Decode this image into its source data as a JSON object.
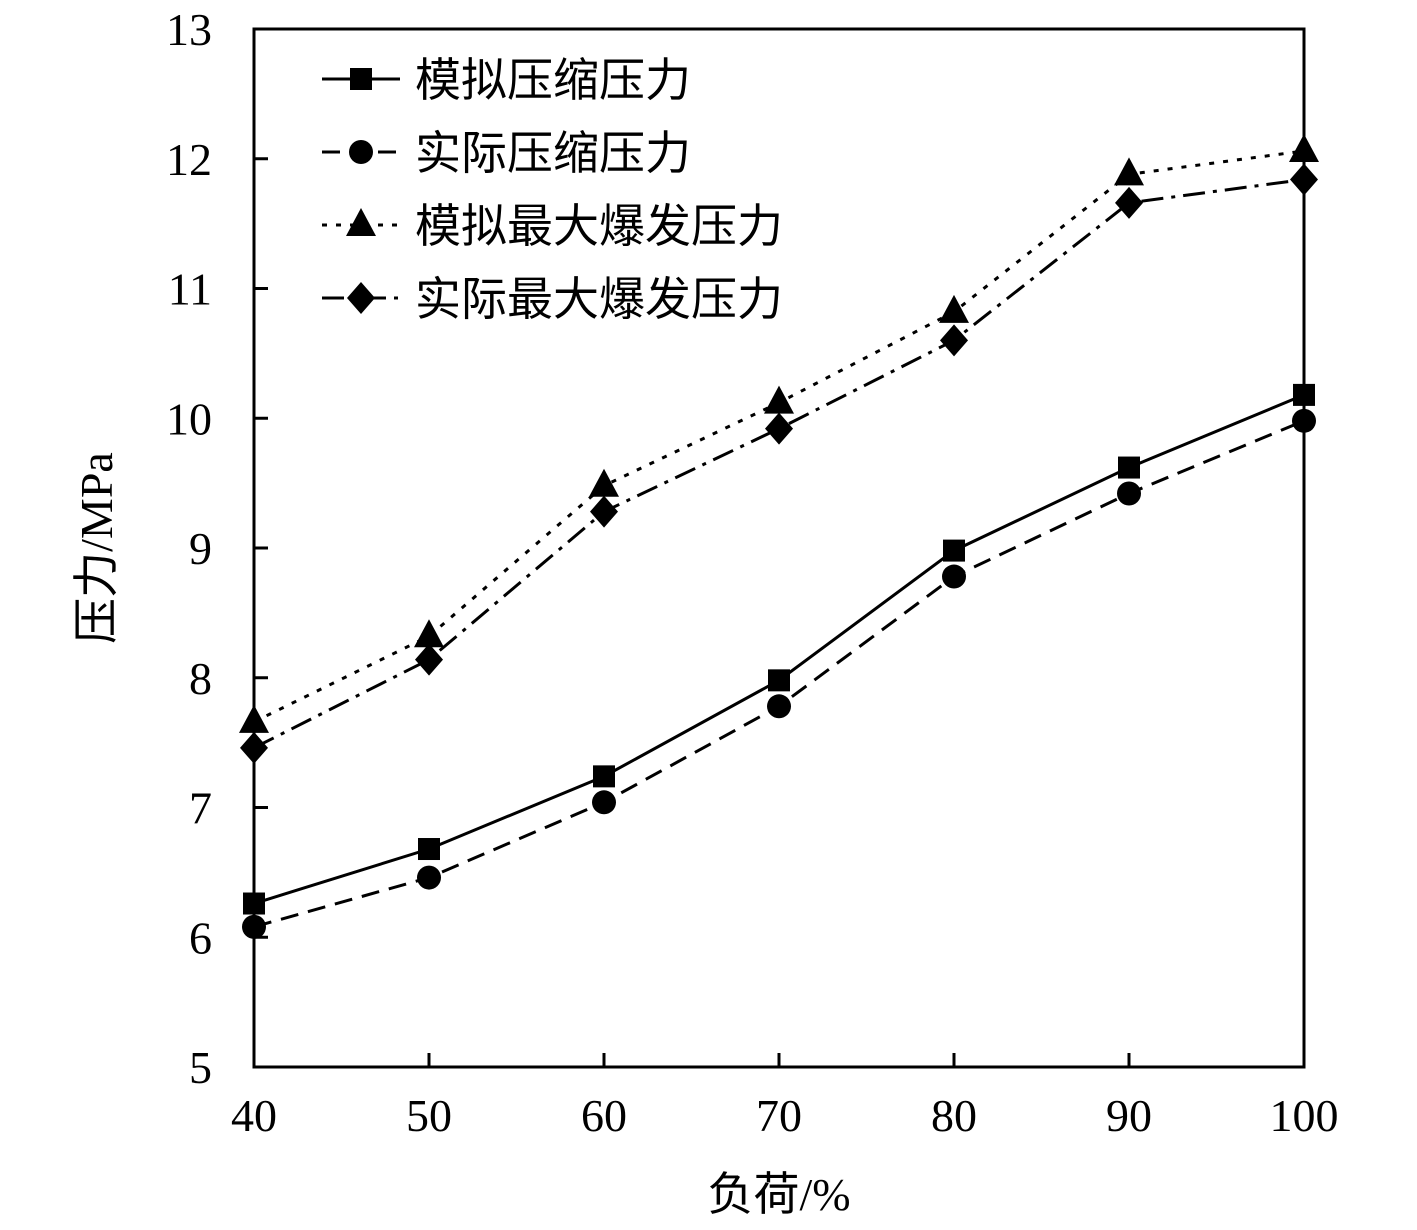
{
  "chart_data": {
    "type": "line",
    "xlabel": "负荷/%",
    "ylabel": "压力/MPa",
    "x": [
      40,
      50,
      60,
      70,
      80,
      90,
      100
    ],
    "xlim": [
      40,
      100
    ],
    "ylim": [
      5,
      13
    ],
    "xticks": [
      40,
      50,
      60,
      70,
      80,
      90,
      100
    ],
    "yticks": [
      5,
      6,
      7,
      8,
      9,
      10,
      11,
      12,
      13
    ],
    "grid": false,
    "legend_position": "top-left",
    "series": [
      {
        "name": "模拟压缩压力",
        "marker": "square",
        "dash": "solid",
        "values": [
          6.26,
          6.68,
          7.24,
          7.98,
          8.98,
          9.62,
          10.18
        ]
      },
      {
        "name": "实际压缩压力",
        "marker": "circle",
        "dash": "dashed",
        "values": [
          6.08,
          6.46,
          7.04,
          7.78,
          8.78,
          9.42,
          9.98
        ]
      },
      {
        "name": "模拟最大爆发压力",
        "marker": "triangle",
        "dash": "dotted",
        "values": [
          7.66,
          8.32,
          9.48,
          10.12,
          10.82,
          11.88,
          12.06
        ]
      },
      {
        "name": "实际最大爆发压力",
        "marker": "diamond",
        "dash": "dashdot",
        "values": [
          7.46,
          8.14,
          9.28,
          9.92,
          10.6,
          11.66,
          11.84
        ]
      }
    ]
  }
}
